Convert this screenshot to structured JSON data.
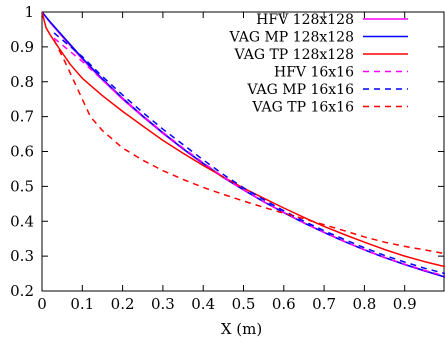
{
  "chart_data": {
    "type": "line",
    "title": "",
    "xlabel": "X (m)",
    "ylabel": "",
    "xlim": [
      0,
      1
    ],
    "ylim": [
      0.2,
      1
    ],
    "x_ticks": [
      0,
      0.1,
      0.2,
      0.3,
      0.4,
      0.5,
      0.6,
      0.7,
      0.8,
      0.9
    ],
    "x_tick_labels": [
      "0",
      "0.1",
      "0.2",
      "0.3",
      "0.4",
      "0.5",
      "0.6",
      "0.7",
      "0.8",
      "0.9"
    ],
    "y_ticks": [
      0.2,
      0.3,
      0.4,
      0.5,
      0.6,
      0.7,
      0.8,
      0.9,
      1
    ],
    "y_tick_labels": [
      "0.2",
      "0.3",
      "0.4",
      "0.5",
      "0.6",
      "0.7",
      "0.8",
      "0.9",
      "1"
    ],
    "grid": false,
    "legend_position": "top-right",
    "series": [
      {
        "name": "HFV 128x128",
        "color": "#ff00ff",
        "dash": "solid",
        "x": [
          0,
          0.02,
          0.05,
          0.1,
          0.15,
          0.2,
          0.25,
          0.3,
          0.35,
          0.4,
          0.45,
          0.5,
          0.55,
          0.6,
          0.65,
          0.7,
          0.75,
          0.8,
          0.85,
          0.9,
          0.95,
          1
        ],
        "y": [
          1,
          0.97,
          0.93,
          0.865,
          0.805,
          0.75,
          0.7,
          0.652,
          0.607,
          0.565,
          0.525,
          0.49,
          0.456,
          0.425,
          0.395,
          0.368,
          0.342,
          0.318,
          0.296,
          0.276,
          0.257,
          0.24
        ]
      },
      {
        "name": "VAG MP 128x128",
        "color": "#0000ff",
        "dash": "solid",
        "x": [
          0,
          0.02,
          0.05,
          0.1,
          0.15,
          0.2,
          0.25,
          0.3,
          0.35,
          0.4,
          0.45,
          0.5,
          0.55,
          0.6,
          0.65,
          0.7,
          0.75,
          0.8,
          0.85,
          0.9,
          0.95,
          1
        ],
        "y": [
          1,
          0.972,
          0.933,
          0.868,
          0.808,
          0.753,
          0.702,
          0.654,
          0.608,
          0.566,
          0.526,
          0.49,
          0.456,
          0.425,
          0.395,
          0.368,
          0.342,
          0.318,
          0.296,
          0.276,
          0.258,
          0.24
        ]
      },
      {
        "name": "VAG TP 128x128",
        "color": "#ff0000",
        "dash": "solid",
        "x": [
          0,
          0.01,
          0.02,
          0.04,
          0.07,
          0.1,
          0.15,
          0.2,
          0.25,
          0.3,
          0.35,
          0.4,
          0.45,
          0.5,
          0.55,
          0.6,
          0.65,
          0.7,
          0.75,
          0.8,
          0.85,
          0.9,
          0.95,
          1
        ],
        "y": [
          1,
          0.955,
          0.935,
          0.9,
          0.85,
          0.81,
          0.76,
          0.715,
          0.673,
          0.632,
          0.595,
          0.56,
          0.527,
          0.495,
          0.466,
          0.438,
          0.411,
          0.385,
          0.362,
          0.34,
          0.319,
          0.3,
          0.284,
          0.27
        ]
      },
      {
        "name": "HFV 16x16",
        "color": "#ff00ff",
        "dash": "dashed",
        "x": [
          0.03,
          0.1,
          0.15,
          0.2,
          0.25,
          0.3,
          0.35,
          0.4,
          0.45,
          0.5,
          0.55,
          0.6,
          0.65,
          0.7,
          0.75,
          0.8,
          0.85,
          0.9,
          0.95,
          1
        ],
        "y": [
          0.925,
          0.858,
          0.805,
          0.752,
          0.703,
          0.655,
          0.61,
          0.568,
          0.527,
          0.49,
          0.456,
          0.425,
          0.395,
          0.368,
          0.342,
          0.318,
          0.296,
          0.277,
          0.259,
          0.243
        ]
      },
      {
        "name": "VAG MP 16x16",
        "color": "#0000ff",
        "dash": "dashed",
        "x": [
          0.03,
          0.1,
          0.15,
          0.2,
          0.25,
          0.3,
          0.35,
          0.4,
          0.45,
          0.5,
          0.55,
          0.6,
          0.65,
          0.7,
          0.75,
          0.8,
          0.85,
          0.9,
          0.95,
          1
        ],
        "y": [
          0.94,
          0.872,
          0.815,
          0.762,
          0.712,
          0.664,
          0.62,
          0.576,
          0.534,
          0.496,
          0.462,
          0.43,
          0.4,
          0.373,
          0.348,
          0.324,
          0.302,
          0.283,
          0.265,
          0.25
        ]
      },
      {
        "name": "VAG TP 16x16",
        "color": "#ff0000",
        "dash": "dashed",
        "x": [
          0.03,
          0.06,
          0.09,
          0.12,
          0.15,
          0.2,
          0.25,
          0.3,
          0.35,
          0.4,
          0.45,
          0.5,
          0.55,
          0.6,
          0.65,
          0.7,
          0.75,
          0.8,
          0.85,
          0.9,
          0.95,
          1
        ],
        "y": [
          0.92,
          0.85,
          0.775,
          0.7,
          0.66,
          0.61,
          0.575,
          0.545,
          0.52,
          0.497,
          0.477,
          0.458,
          0.44,
          0.423,
          0.407,
          0.39,
          0.373,
          0.355,
          0.34,
          0.328,
          0.318,
          0.307
        ]
      }
    ]
  }
}
